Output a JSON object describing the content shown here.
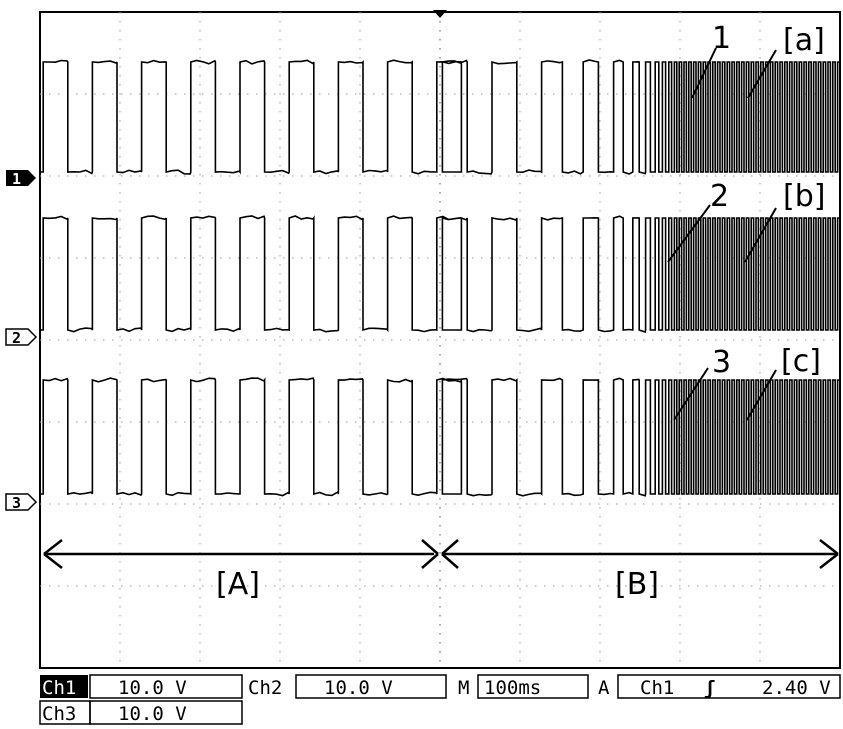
{
  "chart_data": {
    "type": "line",
    "xlim": [
      0,
      1000
    ],
    "x_unit": "ms",
    "grid": true,
    "channel_markers": [
      "1",
      "2",
      "3"
    ],
    "series": [
      {
        "levels": [
          1,
          0
        ],
        "region_A": {
          "t_start": 0,
          "t_end": 500,
          "period": 61.5,
          "duty": 0.5
        },
        "region_B": {
          "t_start": 500,
          "t_end": 1000,
          "periods": [
            62,
            62,
            52,
            38,
            24,
            16,
            12,
            9,
            8,
            7,
            6
          ]
        },
        "annotations": [
          {
            "text": "1",
            "t": 905,
            "y": 13.5
          },
          {
            "text": "[a]",
            "t": 980,
            "y": 13.5
          }
        ]
      },
      {
        "levels": [
          1,
          0
        ],
        "region_A": {
          "t_start": 0,
          "t_end": 500,
          "period": 61.5,
          "duty": 0.5
        },
        "region_B": {
          "t_start": 500,
          "t_end": 1000,
          "periods": [
            62,
            62,
            52,
            38,
            24,
            16,
            12,
            9,
            8,
            7,
            6
          ]
        },
        "annotations": [
          {
            "text": "2",
            "t": 905,
            "y": 8.6
          },
          {
            "text": "[b]",
            "t": 980,
            "y": 8.6
          }
        ]
      },
      {
        "levels": [
          1,
          0
        ],
        "region_A": {
          "t_start": 0,
          "t_end": 500,
          "period": 61.5,
          "duty": 0.5
        },
        "region_B": {
          "t_start": 500,
          "t_end": 1000,
          "periods": [
            62,
            62,
            52,
            38,
            24,
            16,
            12,
            9,
            8,
            7,
            6
          ]
        },
        "annotations": [
          {
            "text": "3",
            "t": 905,
            "y": 3.6
          },
          {
            "text": "[c]",
            "t": 980,
            "y": 3.6
          }
        ]
      }
    ],
    "regions": [
      {
        "label": "[A]",
        "t_start": 0,
        "t_end": 500
      },
      {
        "label": "[B]",
        "t_start": 500,
        "t_end": 1000
      }
    ]
  },
  "status_bar": {
    "ch1_label": "Ch1",
    "ch1_scale": "10.0 V",
    "ch2_label": "Ch2",
    "ch2_scale": "10.0 V",
    "ch3_label": "Ch3",
    "ch3_scale": "10.0 V",
    "timebase_label": "M",
    "timebase": "100ms",
    "trigger_label": "A",
    "trigger_source": "Ch1",
    "trigger_slope": "ʃ",
    "trigger_level": "2.40 V"
  }
}
